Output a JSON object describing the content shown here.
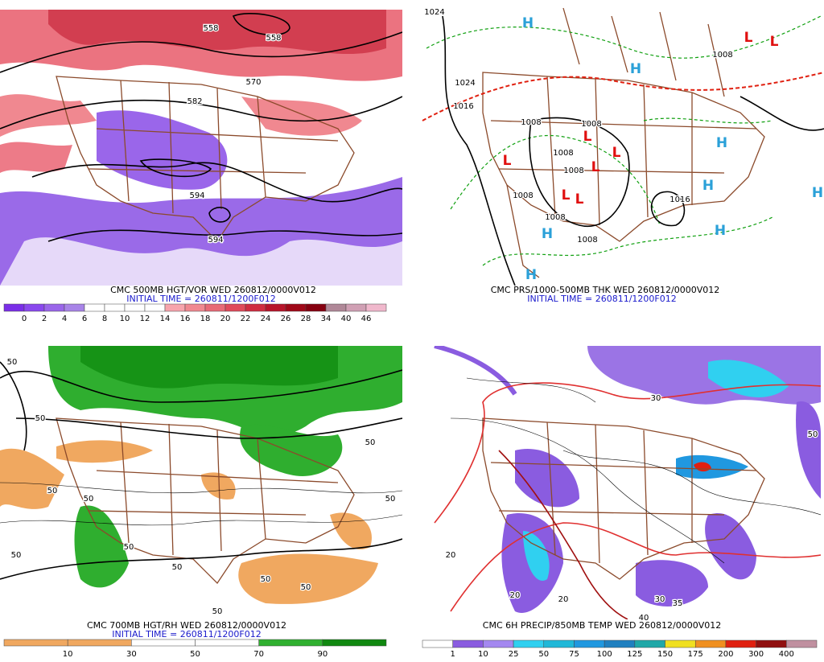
{
  "panels": [
    {
      "title": "CMC 500MB HGT/VOR WED 260812/0000V012",
      "subtitle": "INITIAL TIME = 260811/1200F012",
      "contour_labels": [
        "558",
        "558",
        "570",
        "582",
        "594",
        "594"
      ],
      "colorbar": {
        "labels": [
          0,
          2,
          4,
          6,
          8,
          10,
          12,
          14,
          16,
          18,
          20,
          22,
          24,
          26,
          28,
          34,
          40,
          46
        ],
        "colors": [
          "#7a2ee8",
          "#8a48ee",
          "#9a66ea",
          "#a884e8",
          "#ffffff",
          "#ffffff",
          "#ffffff",
          "#ffffff",
          "#f7a4ac",
          "#f08890",
          "#e86a76",
          "#e04a5a",
          "#d02c40",
          "#b8142a",
          "#a00818",
          "#860010",
          "#b08898",
          "#d0a0b4",
          "#f0b8cc"
        ]
      }
    },
    {
      "title": "CMC PRS/1000-500MB THK WED 260812/0000V012",
      "subtitle": "INITIAL TIME = 260811/1200F012",
      "contour_labels": [
        "1024",
        "1024",
        "1008",
        "1008",
        "1008",
        "1008",
        "1008",
        "1008",
        "1008",
        "1008",
        "1016",
        "1016"
      ],
      "highs": [
        "H",
        "H",
        "H",
        "H",
        "H",
        "H",
        "H",
        "H"
      ],
      "lows": [
        "L",
        "L",
        "L",
        "L",
        "L",
        "L",
        "L",
        "L"
      ]
    },
    {
      "title": "CMC 700MB HGT/RH WED 260812/0000V012",
      "subtitle": "INITIAL TIME = 260811/1200F012",
      "contour_labels": [
        "50",
        "50",
        "50",
        "50",
        "50",
        "50",
        "50",
        "50",
        "50",
        "50",
        "50",
        "50"
      ],
      "colorbar": {
        "labels": [
          10,
          30,
          50,
          70,
          90
        ],
        "colors": [
          "#f0a860",
          "#f0a860",
          "#ffffff",
          "#ffffff",
          "#30b030",
          "#108810"
        ]
      }
    },
    {
      "title": "CMC 6H PRECIP/850MB TEMP WED 260812/0000V012",
      "contour_labels": [
        "20",
        "20",
        "20",
        "30",
        "30",
        "35",
        "40",
        "50"
      ],
      "colorbar": {
        "labels": [
          1,
          10,
          25,
          50,
          75,
          100,
          125,
          150,
          175,
          200,
          300,
          400
        ],
        "colors": [
          "#ffffff",
          "#8a5ce0",
          "#a488f0",
          "#30d0f0",
          "#20b8d8",
          "#2098e0",
          "#2080c0",
          "#20a8a8",
          "#f0e020",
          "#f09020",
          "#e02010",
          "#901010",
          "#c090a0"
        ]
      }
    }
  ]
}
